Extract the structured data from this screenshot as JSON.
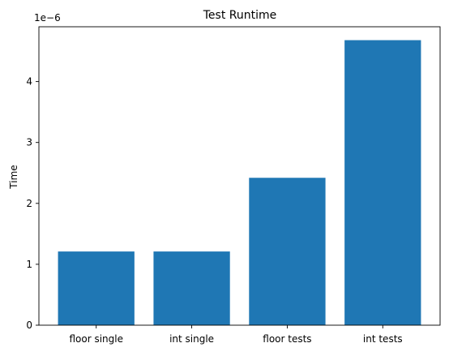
{
  "chart_data": {
    "type": "bar",
    "title": "Test Runtime",
    "xlabel": "",
    "ylabel": "Time",
    "offset_label": "1e−6",
    "categories": [
      "floor single",
      "int single",
      "floor tests",
      "int tests"
    ],
    "values": [
      1.21e-06,
      1.21e-06,
      2.42e-06,
      4.68e-06
    ],
    "ylim": [
      0,
      4.9e-06
    ],
    "yticks": [
      0,
      1e-06,
      2e-06,
      3e-06,
      4e-06
    ],
    "ytick_labels": [
      "0",
      "1",
      "2",
      "3",
      "4"
    ],
    "bar_color": "#1f77b4",
    "grid": false,
    "legend": false
  }
}
